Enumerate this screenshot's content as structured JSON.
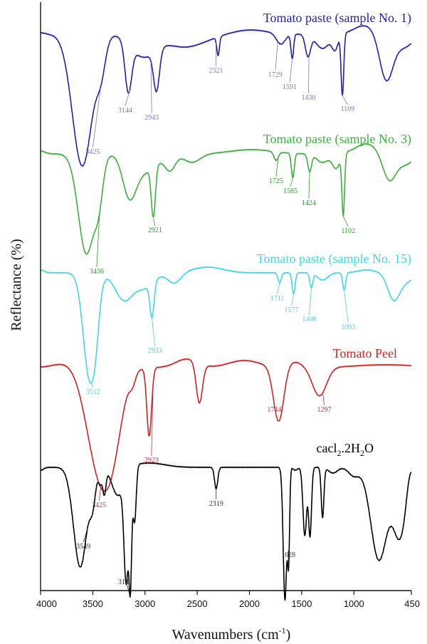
{
  "chart_data": {
    "type": "line",
    "xlabel": "Wavenumbers (cm",
    "xlabel_sup": "-1",
    "xlabel_end": ")",
    "ylabel": "Reflectance (%)",
    "xlim": [
      4000,
      450
    ],
    "reversed_x": true,
    "x_ticks": [
      {
        "value": 4000,
        "label": "4000"
      },
      {
        "value": 3500,
        "label": "3500"
      },
      {
        "value": 3000,
        "label": "3000"
      },
      {
        "value": 2500,
        "label": "2500"
      },
      {
        "value": 2000,
        "label": "2000"
      },
      {
        "value": 1500,
        "label": "1500"
      },
      {
        "value": 1000,
        "label": "1000"
      },
      {
        "value": 450,
        "label": "450"
      }
    ],
    "series": [
      {
        "name": "Tomato paste (sample No. 1)",
        "color": "#1f1fb4",
        "label_color": "#7a7ac8",
        "peaks": [
          "3425",
          "3144",
          "2943",
          "2321",
          "1729",
          "1591",
          "1430",
          "1109"
        ]
      },
      {
        "name": "Tomato paste (sample No. 3)",
        "color": "#3cb03c",
        "label_color": "#2e9a2e",
        "peaks": [
          "3436",
          "2921",
          "1725",
          "1585",
          "1424",
          "1102"
        ]
      },
      {
        "name": "Tomato paste (sample No. 15)",
        "color": "#3fd6e6",
        "label_color": "#5ccad6",
        "peaks": [
          "3512",
          "2933",
          "1711",
          "1577",
          "1408",
          "1093"
        ]
      },
      {
        "name": "Tomato Peel",
        "color": "#d42020",
        "label_color": "#c0304a",
        "peaks": [
          "3425",
          "2923",
          "1744",
          "1297"
        ]
      },
      {
        "name_main": "cacl",
        "name_sub1": "2",
        "name_mid": ".2H",
        "name_sub2": "2",
        "name_end": "O",
        "color": "#000000",
        "label_color": "#333333",
        "peaks": [
          "3549",
          "3141",
          "2319",
          "1628"
        ]
      }
    ]
  }
}
